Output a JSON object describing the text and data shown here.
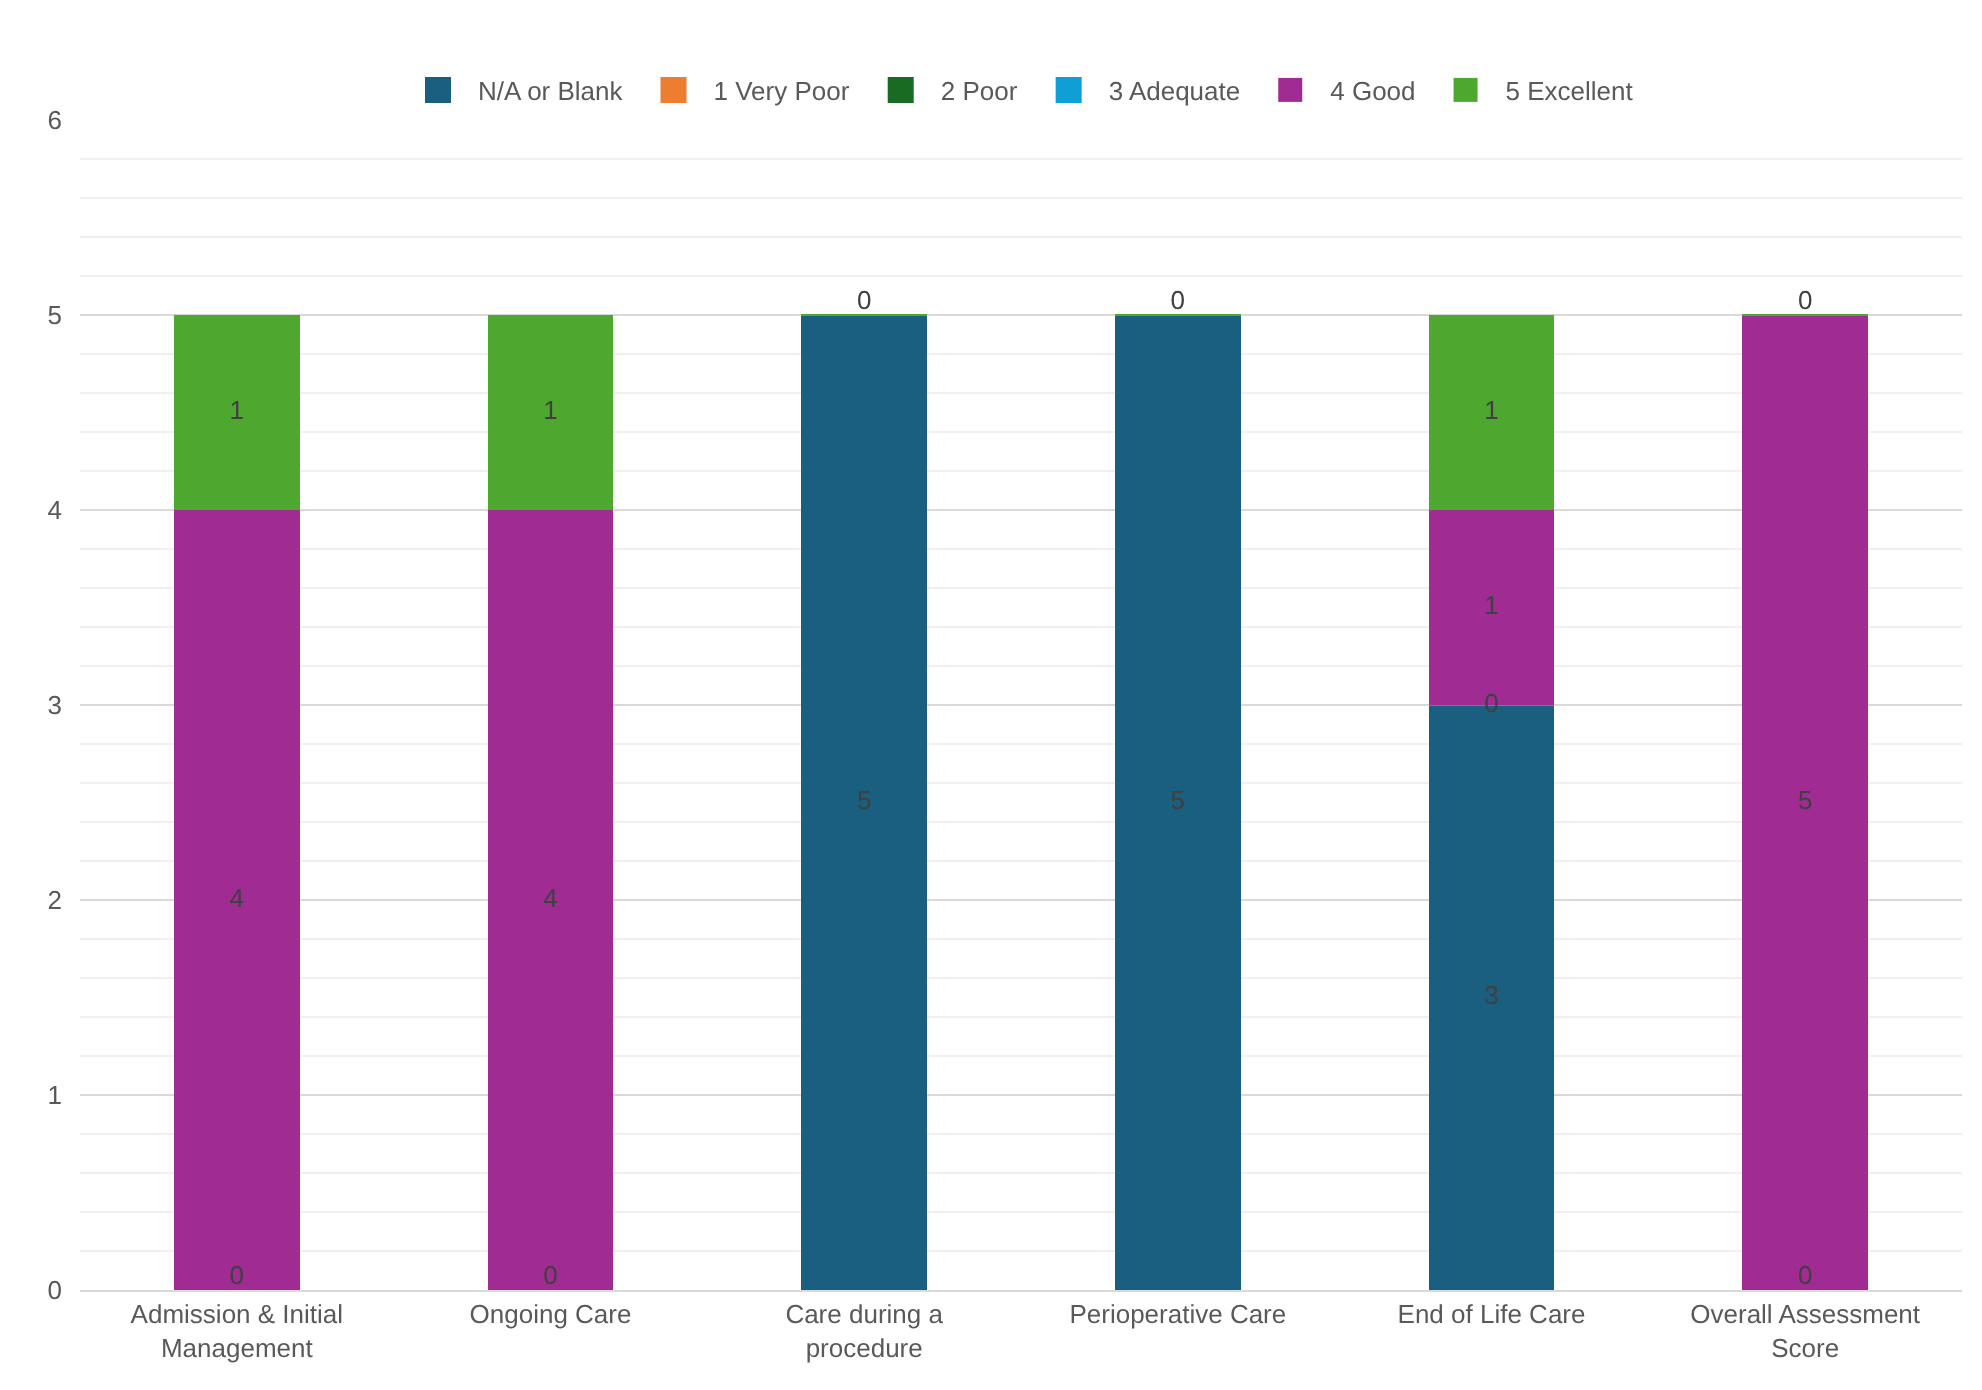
{
  "chart_data": {
    "type": "bar",
    "stacked": true,
    "legend": "top",
    "grid": "y",
    "categories": [
      "Admission & Initial Management",
      "Ongoing Care",
      "Care during a procedure",
      "Perioperative Care",
      "End of Life Care",
      "Overall Assessment Score"
    ],
    "ylim": [
      0,
      6
    ],
    "yticks": [
      0,
      1,
      2,
      3,
      4,
      5,
      6
    ],
    "series": [
      {
        "name": "N/A or Blank",
        "color": "#1a5e80",
        "values": [
          0,
          0,
          5,
          5,
          3,
          0
        ],
        "value_labels": [
          "0",
          "0",
          "5",
          "5",
          "3",
          "0"
        ]
      },
      {
        "name": "1 Very Poor",
        "color": "#ed7d31",
        "values": [
          0,
          0,
          0,
          0,
          0,
          0
        ],
        "value_labels": [
          null,
          null,
          null,
          null,
          "0",
          null
        ]
      },
      {
        "name": "2 Poor",
        "color": "#196b24",
        "values": [
          0,
          0,
          0,
          0,
          0,
          0
        ],
        "value_labels": [
          null,
          null,
          null,
          null,
          null,
          null
        ]
      },
      {
        "name": "3 Adequate",
        "color": "#0f9ed5",
        "values": [
          0,
          0,
          0,
          0,
          0,
          0
        ],
        "value_labels": [
          null,
          null,
          null,
          null,
          null,
          null
        ]
      },
      {
        "name": "4 Good",
        "color": "#a02b93",
        "values": [
          4,
          4,
          0,
          0,
          1,
          5
        ],
        "value_labels": [
          "4",
          "4",
          null,
          null,
          "1",
          "5"
        ]
      },
      {
        "name": "5 Excellent",
        "color": "#4ea72e",
        "values": [
          1,
          1,
          0,
          0,
          1,
          0
        ],
        "value_labels": [
          "1",
          "1",
          "0",
          "0",
          "1",
          "0"
        ]
      }
    ]
  }
}
